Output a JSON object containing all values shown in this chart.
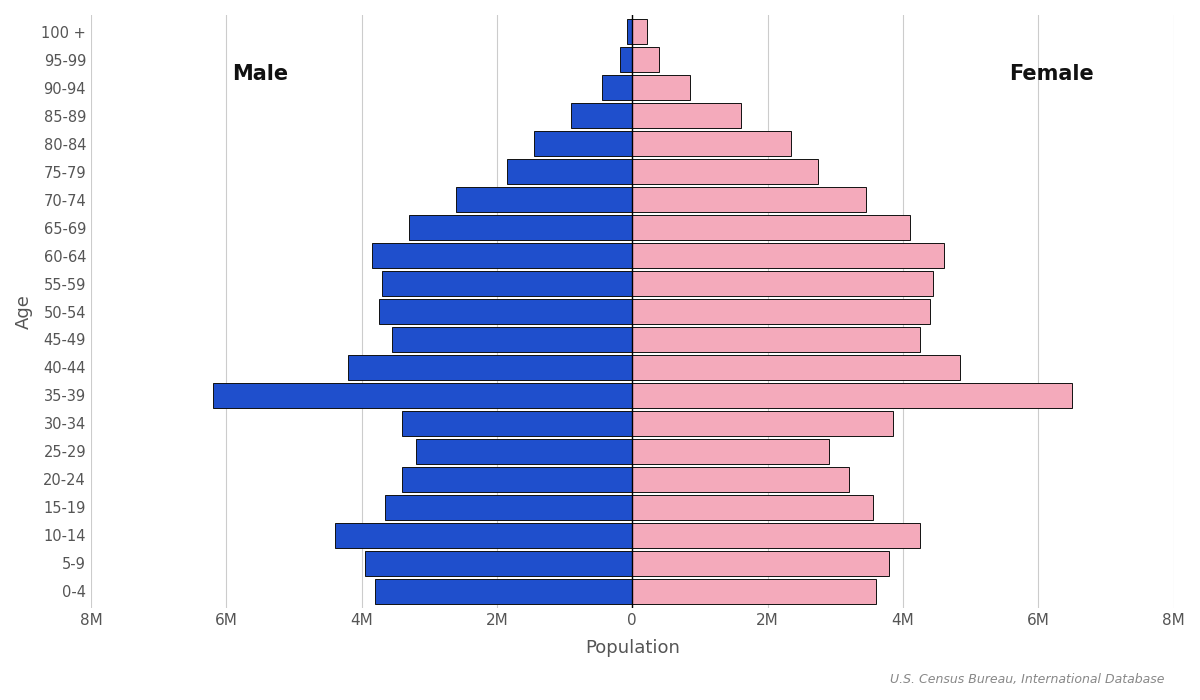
{
  "age_groups": [
    "0-4",
    "5-9",
    "10-14",
    "15-19",
    "20-24",
    "25-29",
    "30-34",
    "35-39",
    "40-44",
    "45-49",
    "50-54",
    "55-59",
    "60-64",
    "65-69",
    "70-74",
    "75-79",
    "80-84",
    "85-89",
    "90-94",
    "95-99",
    "100 +"
  ],
  "male": [
    3.8,
    3.95,
    4.4,
    3.65,
    3.4,
    3.2,
    3.4,
    6.2,
    4.2,
    3.55,
    3.75,
    3.7,
    3.85,
    3.3,
    2.6,
    1.85,
    1.45,
    0.9,
    0.45,
    0.18,
    0.08
  ],
  "female": [
    3.6,
    3.8,
    4.25,
    3.55,
    3.2,
    2.9,
    3.85,
    6.5,
    4.85,
    4.25,
    4.4,
    4.45,
    4.6,
    4.1,
    3.45,
    2.75,
    2.35,
    1.6,
    0.85,
    0.4,
    0.22
  ],
  "male_color": "#1F4FCC",
  "female_color": "#F4AABB",
  "bar_edge_color": "#111111",
  "grid_color": "#CCCCCC",
  "xlabel": "Population",
  "ylabel": "Age",
  "male_label": "Male",
  "female_label": "Female",
  "source_text": "U.S. Census Bureau, International Database",
  "xlim": 8.0,
  "xtick_labels": [
    "8M",
    "6M",
    "4M",
    "2M",
    "0",
    "2M",
    "4M",
    "6M",
    "8M"
  ],
  "xtick_values": [
    -8,
    -6,
    -4,
    -2,
    0,
    2,
    4,
    6,
    8
  ],
  "background_color": "#FFFFFF",
  "bar_height": 0.88
}
